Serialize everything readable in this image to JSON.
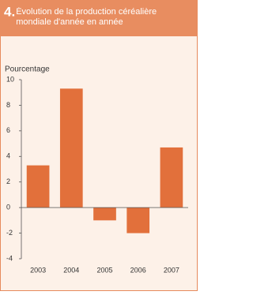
{
  "figure_number": "4.",
  "chart_data": {
    "type": "bar",
    "title": "Évolution de la production céréalière mondiale d'année en année",
    "y_label": "Pourcentage",
    "categories": [
      "2003",
      "2004",
      "2005",
      "2006",
      "2007"
    ],
    "values": [
      3.3,
      9.3,
      -1.0,
      -2.0,
      4.7
    ],
    "color": "#e2703b",
    "ylim": [
      -4,
      10
    ],
    "yticks": [
      -4,
      -2,
      0,
      2,
      4,
      6,
      8,
      10
    ],
    "grid": false
  }
}
